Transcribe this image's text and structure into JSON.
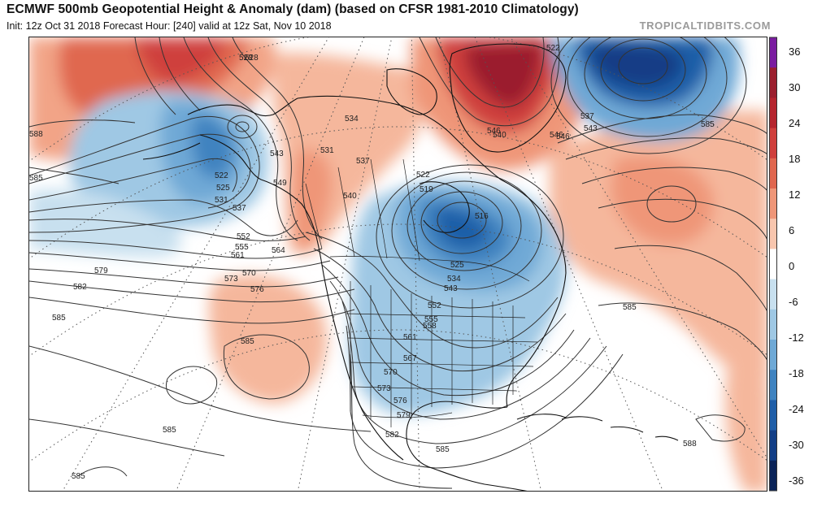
{
  "header": {
    "title": "ECMWF 500mb Geopotential Height & Anomaly (dam) (based on CFSR 1981-2010 Climatology)",
    "subtitle": "Init: 12z Oct 31 2018   Forecast Hour: [240]   valid at 12z Sat, Nov 10 2018",
    "brand": "TROPICALTIDBITS.COM"
  },
  "colorbar": {
    "ticks": [
      "36",
      "30",
      "24",
      "18",
      "12",
      "6",
      "0",
      "-6",
      "-12",
      "-18",
      "-24",
      "-30",
      "-36"
    ],
    "colors": [
      "#7a1ca0",
      "#9b1f2e",
      "#b5252e",
      "#cf3f3c",
      "#e0674f",
      "#ef9678",
      "#f8c6ae",
      "#ffffff",
      "#c8e0ef",
      "#9fc8e4",
      "#6fa9d6",
      "#3f83c0",
      "#1f5ea8",
      "#123e86",
      "#0a2358"
    ]
  },
  "map": {
    "contour_labels": [
      {
        "text": "528"
      },
      {
        "text": "588"
      },
      {
        "text": "585"
      },
      {
        "text": "522"
      },
      {
        "text": "525"
      },
      {
        "text": "531"
      },
      {
        "text": "537"
      },
      {
        "text": "543"
      },
      {
        "text": "549"
      },
      {
        "text": "534"
      },
      {
        "text": "537"
      },
      {
        "text": "540"
      },
      {
        "text": "552"
      },
      {
        "text": "555"
      },
      {
        "text": "561"
      },
      {
        "text": "564"
      },
      {
        "text": "570"
      },
      {
        "text": "573"
      },
      {
        "text": "576"
      },
      {
        "text": "579"
      },
      {
        "text": "582"
      },
      {
        "text": "585"
      },
      {
        "text": "585"
      },
      {
        "text": "519"
      },
      {
        "text": "516"
      },
      {
        "text": "522"
      },
      {
        "text": "525"
      },
      {
        "text": "534"
      },
      {
        "text": "543"
      },
      {
        "text": "552"
      },
      {
        "text": "555"
      },
      {
        "text": "558"
      },
      {
        "text": "561"
      },
      {
        "text": "567"
      },
      {
        "text": "570"
      },
      {
        "text": "573"
      },
      {
        "text": "576"
      },
      {
        "text": "579"
      },
      {
        "text": "582"
      },
      {
        "text": "585"
      },
      {
        "text": "546"
      },
      {
        "text": "540"
      },
      {
        "text": "546"
      },
      {
        "text": "522"
      },
      {
        "text": "537"
      },
      {
        "text": "543"
      },
      {
        "text": "546"
      },
      {
        "text": "585"
      },
      {
        "text": "585"
      },
      {
        "text": "588"
      },
      {
        "text": "585"
      },
      {
        "text": "585"
      },
      {
        "text": "531"
      },
      {
        "text": "528"
      }
    ]
  }
}
